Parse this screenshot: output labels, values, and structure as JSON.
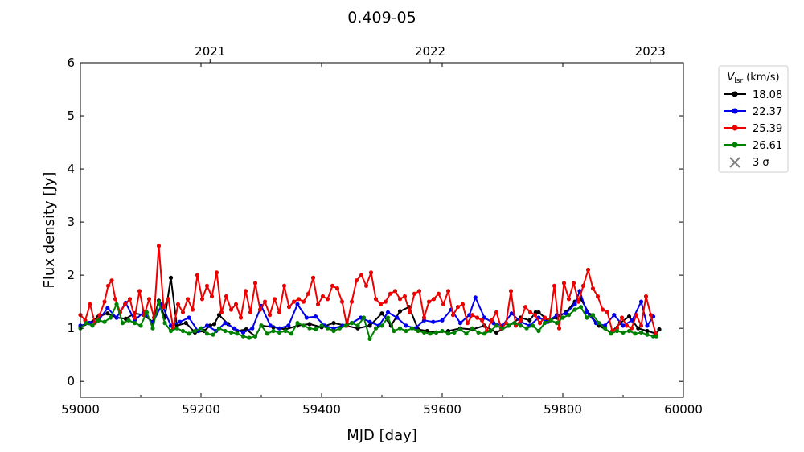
{
  "chart_data": {
    "type": "line",
    "title": "0.409-05",
    "xlabel": "MJD [day]",
    "ylabel": "Flux density [Jy]",
    "xlim": [
      59000,
      60000
    ],
    "ylim": [
      -0.3,
      6.0
    ],
    "x_ticks": [
      "59000",
      "59200",
      "59400",
      "59600",
      "59800",
      "60000"
    ],
    "x_tick_values": [
      59000,
      59200,
      59400,
      59600,
      59800,
      60000
    ],
    "y_ticks": [
      "0",
      "1",
      "2",
      "3",
      "4",
      "5",
      "6"
    ],
    "y_tick_values": [
      0,
      1,
      2,
      3,
      4,
      5,
      6
    ],
    "top_axis_ticks": [
      "2021",
      "2022",
      "2023"
    ],
    "top_axis_tick_values": [
      59215,
      59580,
      59945
    ],
    "grid": false,
    "legend": {
      "title_main": "V",
      "title_sub": "lsr",
      "title_unit": "(km/s)",
      "placement": "outside-top-right",
      "sigma_label": "3 σ"
    },
    "colors": {
      "sigma_marker": "#808080"
    },
    "series": [
      {
        "name": "18.08",
        "color": "#000000",
        "x": [
          59000,
          59015,
          59030,
          59045,
          59060,
          59075,
          59090,
          59105,
          59120,
          59130,
          59140,
          59150,
          59160,
          59175,
          59190,
          59205,
          59215,
          59222,
          59230,
          59245,
          59260,
          59275,
          59290,
          59300,
          59320,
          59340,
          59360,
          59380,
          59400,
          59420,
          59440,
          59460,
          59480,
          59500,
          59515,
          59530,
          59545,
          59560,
          59575,
          59590,
          59610,
          59630,
          59650,
          59670,
          59690,
          59710,
          59730,
          59745,
          59755,
          59760,
          59775,
          59790,
          59805,
          59820,
          59830,
          59845,
          59860,
          59880,
          59895,
          59910,
          59925,
          59940,
          59955,
          59960
        ],
        "y": [
          1.02,
          1.1,
          1.22,
          1.28,
          1.2,
          1.18,
          1.28,
          1.25,
          1.12,
          1.52,
          1.2,
          1.95,
          1.05,
          1.1,
          0.92,
          0.95,
          1.05,
          1.08,
          1.25,
          1.08,
          0.95,
          0.98,
          0.85,
          1.05,
          1.02,
          0.98,
          1.05,
          1.08,
          1.02,
          1.1,
          1.05,
          1.0,
          1.05,
          1.28,
          1.05,
          1.32,
          1.4,
          0.98,
          0.95,
          0.92,
          0.95,
          1.0,
          0.98,
          1.05,
          0.92,
          1.05,
          1.2,
          1.15,
          1.3,
          1.3,
          1.15,
          1.2,
          1.3,
          1.5,
          1.55,
          1.25,
          1.05,
          0.92,
          1.1,
          1.22,
          1.0,
          0.95,
          0.9,
          0.98
        ]
      },
      {
        "name": "22.37",
        "color": "#0000ee",
        "x": [
          59000,
          59015,
          59030,
          59045,
          59060,
          59075,
          59090,
          59105,
          59120,
          59135,
          59150,
          59165,
          59180,
          59195,
          59210,
          59225,
          59240,
          59255,
          59270,
          59285,
          59300,
          59315,
          59330,
          59345,
          59360,
          59375,
          59390,
          59405,
          59420,
          59435,
          59450,
          59465,
          59480,
          59495,
          59510,
          59525,
          59540,
          59555,
          59570,
          59585,
          59600,
          59615,
          59630,
          59645,
          59655,
          59670,
          59685,
          59700,
          59715,
          59730,
          59745,
          59760,
          59775,
          59790,
          59805,
          59820,
          59828,
          59840,
          59855,
          59870,
          59885,
          59900,
          59915,
          59930,
          59940,
          59950
        ],
        "y": [
          1.05,
          1.1,
          1.15,
          1.38,
          1.2,
          1.48,
          1.15,
          1.3,
          1.1,
          1.45,
          1.05,
          1.12,
          1.2,
          0.95,
          1.05,
          0.95,
          1.1,
          1.0,
          0.92,
          1.0,
          1.42,
          1.05,
          1.0,
          1.05,
          1.45,
          1.2,
          1.22,
          1.05,
          1.0,
          1.05,
          1.1,
          1.2,
          1.12,
          1.05,
          1.3,
          1.2,
          1.05,
          1.0,
          1.15,
          1.12,
          1.15,
          1.35,
          1.1,
          1.25,
          1.58,
          1.2,
          1.1,
          1.05,
          1.28,
          1.12,
          1.05,
          1.2,
          1.12,
          1.25,
          1.28,
          1.45,
          1.7,
          1.3,
          1.1,
          1.05,
          1.25,
          1.05,
          1.15,
          1.5,
          1.05,
          1.22
        ]
      },
      {
        "name": "25.39",
        "color": "#ee0000",
        "x": [
          59000,
          59008,
          59016,
          59024,
          59032,
          59040,
          59046,
          59052,
          59058,
          59066,
          59074,
          59082,
          59090,
          59098,
          59106,
          59114,
          59122,
          59130,
          59138,
          59146,
          59154,
          59162,
          59170,
          59178,
          59186,
          59194,
          59202,
          59210,
          59218,
          59226,
          59234,
          59242,
          59250,
          59258,
          59266,
          59274,
          59282,
          59290,
          59298,
          59306,
          59314,
          59322,
          59330,
          59338,
          59346,
          59354,
          59362,
          59370,
          59378,
          59386,
          59394,
          59402,
          59410,
          59418,
          59426,
          59434,
          59442,
          59450,
          59458,
          59466,
          59474,
          59482,
          59490,
          59498,
          59506,
          59514,
          59522,
          59530,
          59538,
          59546,
          59554,
          59562,
          59570,
          59578,
          59586,
          59594,
          59602,
          59610,
          59618,
          59626,
          59634,
          59642,
          59650,
          59658,
          59666,
          59674,
          59682,
          59690,
          59698,
          59706,
          59714,
          59722,
          59730,
          59738,
          59746,
          59754,
          59762,
          59770,
          59778,
          59786,
          59794,
          59802,
          59810,
          59818,
          59826,
          59834,
          59842,
          59850,
          59858,
          59866,
          59874,
          59882,
          59890,
          59898,
          59906,
          59914,
          59922,
          59930,
          59938,
          59946,
          59954
        ],
        "y": [
          1.25,
          1.15,
          1.45,
          1.1,
          1.25,
          1.5,
          1.8,
          1.9,
          1.55,
          1.3,
          1.45,
          1.55,
          1.2,
          1.7,
          1.25,
          1.55,
          1.2,
          2.55,
          1.4,
          1.55,
          1.0,
          1.45,
          1.3,
          1.55,
          1.35,
          2.0,
          1.55,
          1.8,
          1.6,
          2.05,
          1.3,
          1.6,
          1.35,
          1.45,
          1.2,
          1.7,
          1.3,
          1.85,
          1.35,
          1.5,
          1.25,
          1.55,
          1.3,
          1.8,
          1.4,
          1.5,
          1.55,
          1.5,
          1.65,
          1.95,
          1.45,
          1.6,
          1.55,
          1.8,
          1.75,
          1.5,
          1.05,
          1.5,
          1.9,
          2.0,
          1.8,
          2.05,
          1.55,
          1.45,
          1.5,
          1.65,
          1.7,
          1.55,
          1.6,
          1.3,
          1.65,
          1.7,
          1.2,
          1.5,
          1.55,
          1.65,
          1.45,
          1.7,
          1.25,
          1.4,
          1.45,
          1.1,
          1.25,
          1.2,
          1.15,
          0.95,
          1.15,
          1.3,
          1.0,
          1.1,
          1.7,
          1.05,
          1.15,
          1.4,
          1.3,
          1.25,
          1.1,
          1.2,
          1.15,
          1.8,
          1.0,
          1.85,
          1.55,
          1.85,
          1.5,
          1.8,
          2.1,
          1.75,
          1.6,
          1.35,
          1.3,
          0.95,
          1.0,
          1.2,
          1.05,
          1.0,
          1.25,
          1.05,
          1.6,
          1.25,
          0.9
        ]
      },
      {
        "name": "26.61",
        "color": "#008000",
        "x": [
          59000,
          59010,
          59020,
          59030,
          59040,
          59050,
          59060,
          59070,
          59080,
          59090,
          59100,
          59110,
          59120,
          59130,
          59140,
          59150,
          59160,
          59170,
          59180,
          59190,
          59200,
          59210,
          59220,
          59230,
          59240,
          59250,
          59260,
          59270,
          59280,
          59290,
          59300,
          59310,
          59320,
          59330,
          59340,
          59350,
          59360,
          59370,
          59380,
          59390,
          59400,
          59410,
          59420,
          59430,
          59440,
          59450,
          59460,
          59470,
          59480,
          59490,
          59500,
          59510,
          59520,
          59530,
          59540,
          59550,
          59560,
          59570,
          59580,
          59590,
          59600,
          59610,
          59620,
          59630,
          59640,
          59650,
          59660,
          59670,
          59680,
          59690,
          59700,
          59710,
          59720,
          59730,
          59740,
          59750,
          59760,
          59770,
          59780,
          59790,
          59800,
          59810,
          59820,
          59830,
          59840,
          59850,
          59860,
          59870,
          59880,
          59890,
          59900,
          59910,
          59920,
          59930,
          59940,
          59950,
          59955
        ],
        "y": [
          1.0,
          1.1,
          1.05,
          1.15,
          1.12,
          1.2,
          1.45,
          1.1,
          1.15,
          1.1,
          1.05,
          1.3,
          1.0,
          1.5,
          1.1,
          0.95,
          1.0,
          0.95,
          0.9,
          0.95,
          1.0,
          0.9,
          0.88,
          1.0,
          0.95,
          0.92,
          0.9,
          0.85,
          0.82,
          0.85,
          1.05,
          0.9,
          0.95,
          0.92,
          0.95,
          0.9,
          1.1,
          1.05,
          1.0,
          0.98,
          1.05,
          1.0,
          0.95,
          1.0,
          1.05,
          1.1,
          1.05,
          1.2,
          0.8,
          1.0,
          1.05,
          1.2,
          0.95,
          1.0,
          0.95,
          1.0,
          0.95,
          0.92,
          0.9,
          0.92,
          0.95,
          0.9,
          0.92,
          0.98,
          0.9,
          1.0,
          0.92,
          0.9,
          0.95,
          1.05,
          1.0,
          1.05,
          1.1,
          1.05,
          1.0,
          1.05,
          0.95,
          1.1,
          1.15,
          1.1,
          1.2,
          1.25,
          1.35,
          1.4,
          1.2,
          1.25,
          1.1,
          1.0,
          0.9,
          0.95,
          0.92,
          0.95,
          0.9,
          0.92,
          0.88,
          0.85,
          0.85
        ]
      }
    ]
  }
}
